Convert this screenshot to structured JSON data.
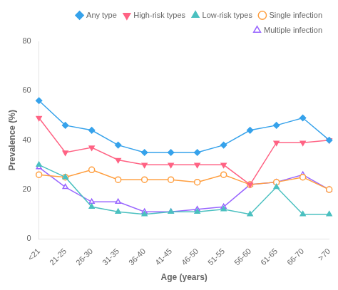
{
  "chart_data": {
    "type": "line",
    "xlabel": "Age (years)",
    "ylabel": "Prevalence (%)",
    "categories": [
      "<21",
      "21-25",
      "26-30",
      "31-35",
      "36-40",
      "41-45",
      "46-50",
      "51-55",
      "56-60",
      "61-65",
      "66-70",
      ">70"
    ],
    "series": [
      {
        "name": "Any type",
        "marker": "diamond",
        "values": [
          56,
          46,
          44,
          38,
          35,
          35,
          35,
          38,
          44,
          46,
          49,
          40
        ]
      },
      {
        "name": "High-risk types",
        "marker": "triangle_down",
        "values": [
          49,
          35,
          37,
          32,
          30,
          30,
          30,
          30,
          22,
          39,
          39,
          40
        ]
      },
      {
        "name": "Low-risk types",
        "marker": "triangle_up",
        "values": [
          30,
          25,
          13,
          11,
          10,
          11,
          11,
          12,
          10,
          21,
          10,
          10
        ]
      },
      {
        "name": "Single infection",
        "marker": "circle_open",
        "values": [
          26,
          25,
          28,
          24,
          24,
          24,
          23,
          26,
          22,
          23,
          25,
          20
        ]
      },
      {
        "name": "Multiple infection",
        "marker": "triangle_up_open",
        "values": [
          29,
          21,
          15,
          15,
          11,
          11,
          12,
          13,
          22,
          23,
          26,
          20
        ]
      }
    ],
    "ylim": [
      0,
      80
    ],
    "yticks": [
      0,
      20,
      40,
      60,
      80
    ],
    "grid": false,
    "legend": "upper right"
  }
}
